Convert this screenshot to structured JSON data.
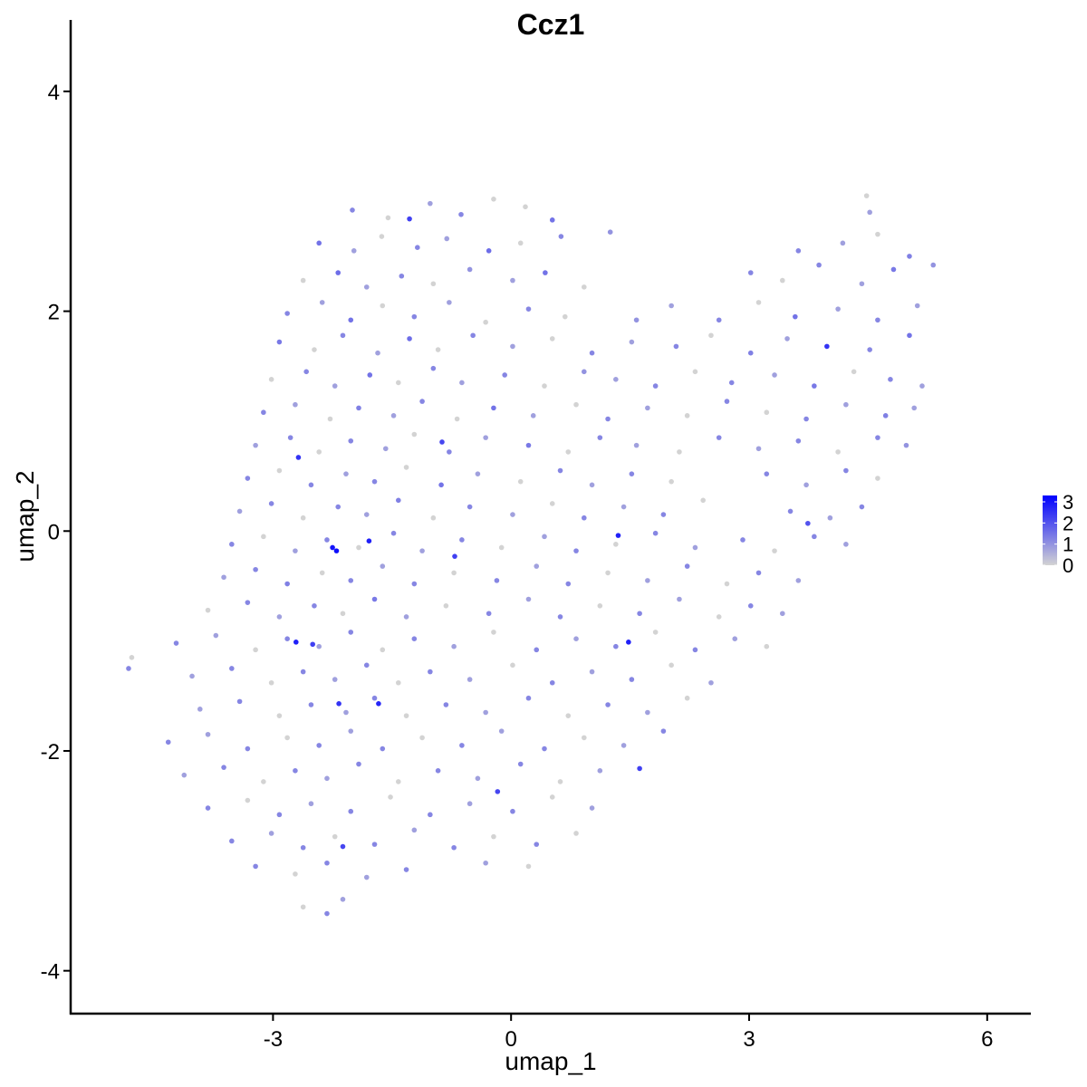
{
  "chart_data": {
    "type": "scatter",
    "title": "Ccz1",
    "xlabel": "umap_1",
    "ylabel": "umap_2",
    "xlim": [
      -5.55,
      6.55
    ],
    "ylim": [
      -4.39,
      4.65
    ],
    "xticks": [
      -3,
      0,
      3,
      6
    ],
    "yticks": [
      -4,
      -2,
      0,
      2,
      4
    ],
    "grid": false,
    "legend": {
      "position": "right",
      "ticks": [
        0,
        1,
        2,
        3
      ],
      "min": 0,
      "max": 3.3
    },
    "colors": {
      "low": "#D3D3D3",
      "high": "#0000FF"
    },
    "points": [
      [
        -2.68,
        0.67,
        2.5
      ],
      [
        -2.25,
        -0.15,
        3.0
      ],
      [
        -2.2,
        -0.18,
        3.1
      ],
      [
        -1.79,
        -0.09,
        2.8
      ],
      [
        -2.71,
        -1.01,
        2.8
      ],
      [
        -2.5,
        -1.03,
        2.3
      ],
      [
        -2.17,
        -1.57,
        2.5
      ],
      [
        -1.67,
        -1.57,
        2.7
      ],
      [
        1.35,
        -0.04,
        2.8
      ],
      [
        1.48,
        -1.01,
        2.8
      ],
      [
        -0.71,
        -0.23,
        2.3
      ],
      [
        3.98,
        1.68,
        2.5
      ],
      [
        -1.28,
        2.84,
        2.3
      ],
      [
        3.74,
        0.07,
        2.0
      ],
      [
        1.62,
        -2.16,
        2.3
      ],
      [
        -0.17,
        -2.37,
        2.2
      ],
      [
        -2.12,
        -2.87,
        2.2
      ],
      [
        -0.87,
        0.81,
        2.2
      ],
      [
        -2.0,
        2.92,
        1.2
      ],
      [
        -1.55,
        2.85,
        0
      ],
      [
        -1.02,
        2.98,
        0.8
      ],
      [
        -0.63,
        2.88,
        1.2
      ],
      [
        -0.22,
        3.02,
        0
      ],
      [
        0.18,
        2.95,
        0
      ],
      [
        0.52,
        2.83,
        1.5
      ],
      [
        4.48,
        3.05,
        0
      ],
      [
        4.52,
        2.9,
        0.8
      ],
      [
        -2.42,
        2.62,
        1.5
      ],
      [
        -1.98,
        2.55,
        0.8
      ],
      [
        -1.63,
        2.68,
        0
      ],
      [
        -1.18,
        2.58,
        1.2
      ],
      [
        -0.81,
        2.66,
        0.8
      ],
      [
        -0.28,
        2.55,
        1.6
      ],
      [
        0.12,
        2.62,
        0
      ],
      [
        0.63,
        2.68,
        1.2
      ],
      [
        1.25,
        2.72,
        1.0
      ],
      [
        3.62,
        2.55,
        1.2
      ],
      [
        4.18,
        2.62,
        0.8
      ],
      [
        4.62,
        2.7,
        0
      ],
      [
        5.02,
        2.5,
        1.3
      ],
      [
        -2.62,
        2.28,
        0
      ],
      [
        -2.18,
        2.35,
        1.6
      ],
      [
        -1.82,
        2.22,
        0.8
      ],
      [
        -1.38,
        2.32,
        1.2
      ],
      [
        -0.98,
        2.25,
        0
      ],
      [
        -0.52,
        2.38,
        1.0
      ],
      [
        0.02,
        2.28,
        0.8
      ],
      [
        0.43,
        2.35,
        1.5
      ],
      [
        0.92,
        2.22,
        0
      ],
      [
        3.02,
        2.35,
        1.2
      ],
      [
        3.42,
        2.28,
        0
      ],
      [
        3.88,
        2.42,
        1.2
      ],
      [
        4.42,
        2.25,
        0.8
      ],
      [
        4.82,
        2.38,
        1.4
      ],
      [
        5.32,
        2.42,
        1.0
      ],
      [
        -2.82,
        1.98,
        1.2
      ],
      [
        -2.38,
        2.08,
        0.8
      ],
      [
        -2.02,
        1.92,
        1.5
      ],
      [
        -1.62,
        2.05,
        0
      ],
      [
        -1.22,
        1.95,
        1.2
      ],
      [
        -0.78,
        2.08,
        0.8
      ],
      [
        -0.32,
        1.9,
        0
      ],
      [
        0.22,
        2.02,
        1.2
      ],
      [
        0.68,
        1.95,
        0
      ],
      [
        1.58,
        1.92,
        1.0
      ],
      [
        2.02,
        2.05,
        0.8
      ],
      [
        2.62,
        1.92,
        1.2
      ],
      [
        3.12,
        2.08,
        0
      ],
      [
        3.58,
        1.95,
        1.5
      ],
      [
        4.12,
        2.02,
        0.8
      ],
      [
        4.62,
        1.92,
        1.2
      ],
      [
        5.12,
        2.05,
        0.8
      ],
      [
        -2.92,
        1.72,
        1.4
      ],
      [
        -2.48,
        1.65,
        0
      ],
      [
        -2.12,
        1.78,
        1.2
      ],
      [
        -1.68,
        1.62,
        0.8
      ],
      [
        -1.28,
        1.75,
        1.6
      ],
      [
        -0.92,
        1.65,
        0
      ],
      [
        -0.48,
        1.78,
        1.2
      ],
      [
        0.02,
        1.68,
        0.8
      ],
      [
        0.52,
        1.75,
        0
      ],
      [
        1.02,
        1.62,
        1.2
      ],
      [
        1.52,
        1.72,
        0.8
      ],
      [
        2.08,
        1.68,
        1.2
      ],
      [
        2.52,
        1.78,
        0
      ],
      [
        3.02,
        1.62,
        1.3
      ],
      [
        3.48,
        1.75,
        0.8
      ],
      [
        4.52,
        1.65,
        1.2
      ],
      [
        5.02,
        1.78,
        1.5
      ],
      [
        -3.02,
        1.38,
        0
      ],
      [
        -2.58,
        1.45,
        1.2
      ],
      [
        -2.22,
        1.32,
        0.8
      ],
      [
        -1.78,
        1.42,
        1.5
      ],
      [
        -1.42,
        1.35,
        0
      ],
      [
        -0.98,
        1.48,
        1.2
      ],
      [
        -0.62,
        1.35,
        0.8
      ],
      [
        -0.08,
        1.42,
        1.2
      ],
      [
        0.42,
        1.32,
        0
      ],
      [
        0.92,
        1.45,
        1.0
      ],
      [
        1.32,
        1.38,
        0.8
      ],
      [
        1.82,
        1.32,
        1.2
      ],
      [
        2.32,
        1.45,
        0
      ],
      [
        2.78,
        1.35,
        1.2
      ],
      [
        3.32,
        1.42,
        0.8
      ],
      [
        3.82,
        1.32,
        1.4
      ],
      [
        4.32,
        1.45,
        0
      ],
      [
        4.78,
        1.38,
        1.2
      ],
      [
        5.18,
        1.32,
        0.8
      ],
      [
        -3.12,
        1.08,
        1.2
      ],
      [
        -2.72,
        1.15,
        0.8
      ],
      [
        -2.28,
        1.02,
        0
      ],
      [
        -1.92,
        1.12,
        1.3
      ],
      [
        -1.48,
        1.05,
        0.8
      ],
      [
        -1.12,
        1.18,
        1.2
      ],
      [
        -0.68,
        1.02,
        0
      ],
      [
        -0.22,
        1.12,
        1.5
      ],
      [
        0.28,
        1.05,
        0.8
      ],
      [
        0.82,
        1.15,
        0
      ],
      [
        1.22,
        1.02,
        1.2
      ],
      [
        1.72,
        1.12,
        0.8
      ],
      [
        2.22,
        1.05,
        0
      ],
      [
        2.72,
        1.18,
        1.2
      ],
      [
        3.22,
        1.08,
        0
      ],
      [
        3.72,
        1.02,
        1.2
      ],
      [
        4.22,
        1.15,
        0.8
      ],
      [
        4.72,
        1.05,
        1.3
      ],
      [
        5.08,
        1.12,
        0.8
      ],
      [
        -3.22,
        0.78,
        0.8
      ],
      [
        -2.78,
        0.85,
        1.2
      ],
      [
        -2.42,
        0.72,
        0
      ],
      [
        -2.02,
        0.82,
        1.2
      ],
      [
        -1.58,
        0.75,
        0.8
      ],
      [
        -1.22,
        0.88,
        0
      ],
      [
        -0.78,
        0.72,
        1.2
      ],
      [
        -0.32,
        0.85,
        0.8
      ],
      [
        0.22,
        0.78,
        1.4
      ],
      [
        0.72,
        0.72,
        0
      ],
      [
        1.12,
        0.85,
        1.2
      ],
      [
        1.58,
        0.78,
        0.8
      ],
      [
        2.12,
        0.72,
        0
      ],
      [
        2.62,
        0.85,
        1.2
      ],
      [
        3.12,
        0.75,
        0.8
      ],
      [
        3.62,
        0.82,
        1.2
      ],
      [
        4.12,
        0.72,
        0
      ],
      [
        4.62,
        0.85,
        1.2
      ],
      [
        4.98,
        0.78,
        1.0
      ],
      [
        -3.32,
        0.48,
        1.2
      ],
      [
        -2.92,
        0.55,
        0
      ],
      [
        -2.52,
        0.42,
        1.2
      ],
      [
        -2.08,
        0.52,
        0.8
      ],
      [
        -1.72,
        0.45,
        1.2
      ],
      [
        -1.32,
        0.58,
        0
      ],
      [
        -0.88,
        0.42,
        1.5
      ],
      [
        -0.42,
        0.52,
        0.8
      ],
      [
        0.12,
        0.45,
        0
      ],
      [
        0.62,
        0.55,
        1.2
      ],
      [
        1.02,
        0.42,
        0.8
      ],
      [
        1.52,
        0.52,
        1.2
      ],
      [
        2.02,
        0.45,
        0
      ],
      [
        3.22,
        0.52,
        1.2
      ],
      [
        3.72,
        0.42,
        0.8
      ],
      [
        4.22,
        0.55,
        1.2
      ],
      [
        4.62,
        0.48,
        0
      ],
      [
        -3.42,
        0.18,
        0.8
      ],
      [
        -3.02,
        0.25,
        1.2
      ],
      [
        -2.62,
        0.12,
        0
      ],
      [
        -2.18,
        0.22,
        1.2
      ],
      [
        -1.82,
        0.15,
        0.8
      ],
      [
        -1.42,
        0.28,
        1.3
      ],
      [
        -0.98,
        0.12,
        0
      ],
      [
        -0.52,
        0.22,
        1.2
      ],
      [
        0.02,
        0.15,
        0.8
      ],
      [
        0.52,
        0.25,
        0
      ],
      [
        0.92,
        0.12,
        1.2
      ],
      [
        1.42,
        0.22,
        0.8
      ],
      [
        1.92,
        0.15,
        1.2
      ],
      [
        2.42,
        0.28,
        0
      ],
      [
        3.52,
        0.18,
        1.2
      ],
      [
        4.02,
        0.12,
        0.8
      ],
      [
        4.42,
        0.22,
        1.2
      ],
      [
        -3.52,
        -0.12,
        1.2
      ],
      [
        -3.12,
        -0.05,
        0
      ],
      [
        -2.72,
        -0.18,
        0.8
      ],
      [
        -2.32,
        -0.08,
        1.2
      ],
      [
        -1.92,
        -0.15,
        0
      ],
      [
        -1.48,
        -0.02,
        1.2
      ],
      [
        -1.12,
        -0.18,
        0.8
      ],
      [
        -0.62,
        -0.08,
        1.2
      ],
      [
        -0.12,
        -0.15,
        0
      ],
      [
        0.42,
        -0.05,
        0.8
      ],
      [
        0.82,
        -0.18,
        1.2
      ],
      [
        1.32,
        -0.12,
        0
      ],
      [
        1.82,
        -0.02,
        1.2
      ],
      [
        2.32,
        -0.15,
        0.8
      ],
      [
        2.92,
        -0.08,
        1.2
      ],
      [
        3.32,
        -0.18,
        0
      ],
      [
        3.82,
        -0.05,
        1.2
      ],
      [
        4.22,
        -0.12,
        0.8
      ],
      [
        -3.62,
        -0.42,
        0.8
      ],
      [
        -3.22,
        -0.35,
        1.2
      ],
      [
        -2.82,
        -0.48,
        1.3
      ],
      [
        -2.38,
        -0.38,
        0
      ],
      [
        -2.02,
        -0.45,
        1.2
      ],
      [
        -1.62,
        -0.32,
        0.8
      ],
      [
        -1.22,
        -0.48,
        1.2
      ],
      [
        -0.72,
        -0.38,
        0
      ],
      [
        -0.18,
        -0.45,
        1.2
      ],
      [
        0.32,
        -0.32,
        0.8
      ],
      [
        0.72,
        -0.48,
        1.2
      ],
      [
        1.22,
        -0.38,
        0
      ],
      [
        1.72,
        -0.45,
        0.8
      ],
      [
        2.22,
        -0.32,
        1.2
      ],
      [
        2.72,
        -0.48,
        0
      ],
      [
        3.12,
        -0.38,
        1.2
      ],
      [
        3.62,
        -0.45,
        0.8
      ],
      [
        -3.82,
        -0.72,
        0
      ],
      [
        -3.32,
        -0.65,
        1.2
      ],
      [
        -2.92,
        -0.78,
        0.8
      ],
      [
        -2.48,
        -0.68,
        1.2
      ],
      [
        -2.12,
        -0.75,
        0
      ],
      [
        -1.72,
        -0.62,
        1.4
      ],
      [
        -1.32,
        -0.78,
        0.8
      ],
      [
        -0.82,
        -0.68,
        0
      ],
      [
        -0.28,
        -0.75,
        1.2
      ],
      [
        0.22,
        -0.62,
        0.8
      ],
      [
        0.62,
        -0.78,
        1.2
      ],
      [
        1.12,
        -0.68,
        0
      ],
      [
        1.62,
        -0.75,
        1.2
      ],
      [
        2.12,
        -0.62,
        0.8
      ],
      [
        2.62,
        -0.78,
        0
      ],
      [
        3.02,
        -0.68,
        1.2
      ],
      [
        3.42,
        -0.75,
        0.8
      ],
      [
        -4.22,
        -1.02,
        1.2
      ],
      [
        -3.72,
        -0.95,
        0.8
      ],
      [
        -3.22,
        -1.08,
        0
      ],
      [
        -2.82,
        -0.98,
        1.2
      ],
      [
        -2.42,
        -1.05,
        0.8
      ],
      [
        -2.02,
        -0.92,
        1.2
      ],
      [
        -1.62,
        -1.08,
        0
      ],
      [
        -1.22,
        -0.98,
        1.2
      ],
      [
        -0.72,
        -1.05,
        0.8
      ],
      [
        -0.22,
        -0.92,
        0
      ],
      [
        0.32,
        -1.08,
        1.2
      ],
      [
        0.82,
        -0.98,
        0.8
      ],
      [
        1.32,
        -1.05,
        1.2
      ],
      [
        1.82,
        -0.92,
        0
      ],
      [
        2.32,
        -1.08,
        1.2
      ],
      [
        2.82,
        -0.98,
        0.8
      ],
      [
        3.22,
        -1.05,
        0
      ],
      [
        -4.82,
        -1.25,
        1.2
      ],
      [
        -4.78,
        -1.15,
        0
      ],
      [
        -4.02,
        -1.32,
        0.8
      ],
      [
        -3.52,
        -1.25,
        1.2
      ],
      [
        -3.02,
        -1.38,
        0
      ],
      [
        -2.62,
        -1.28,
        1.2
      ],
      [
        -2.22,
        -1.35,
        0.8
      ],
      [
        -1.82,
        -1.22,
        1.2
      ],
      [
        -1.42,
        -1.38,
        0
      ],
      [
        -1.02,
        -1.28,
        1.2
      ],
      [
        -0.52,
        -1.35,
        0.8
      ],
      [
        0.02,
        -1.22,
        0
      ],
      [
        0.52,
        -1.38,
        1.2
      ],
      [
        1.02,
        -1.28,
        0.8
      ],
      [
        1.52,
        -1.35,
        1.2
      ],
      [
        2.02,
        -1.22,
        0
      ],
      [
        2.52,
        -1.38,
        0.8
      ],
      [
        -3.92,
        -1.62,
        0.8
      ],
      [
        -3.42,
        -1.55,
        1.2
      ],
      [
        -2.92,
        -1.68,
        0
      ],
      [
        -2.52,
        -1.58,
        1.2
      ],
      [
        -2.08,
        -1.65,
        0.8
      ],
      [
        -1.72,
        -1.52,
        1.2
      ],
      [
        -1.32,
        -1.68,
        0
      ],
      [
        -0.82,
        -1.58,
        1.2
      ],
      [
        -0.32,
        -1.65,
        0.8
      ],
      [
        0.22,
        -1.52,
        1.2
      ],
      [
        0.72,
        -1.68,
        0
      ],
      [
        1.22,
        -1.58,
        1.2
      ],
      [
        1.72,
        -1.65,
        0.8
      ],
      [
        2.22,
        -1.52,
        0
      ],
      [
        -4.32,
        -1.92,
        1.2
      ],
      [
        -3.82,
        -1.85,
        0.8
      ],
      [
        -3.32,
        -1.98,
        1.2
      ],
      [
        -2.82,
        -1.88,
        0
      ],
      [
        -2.42,
        -1.95,
        1.2
      ],
      [
        -2.02,
        -1.82,
        0.8
      ],
      [
        -1.62,
        -1.98,
        1.2
      ],
      [
        -1.12,
        -1.88,
        0
      ],
      [
        -0.62,
        -1.95,
        1.2
      ],
      [
        -0.12,
        -1.82,
        0.8
      ],
      [
        0.42,
        -1.98,
        1.2
      ],
      [
        0.92,
        -1.88,
        0
      ],
      [
        1.42,
        -1.95,
        0.8
      ],
      [
        1.92,
        -1.82,
        1.2
      ],
      [
        -4.12,
        -2.22,
        0.8
      ],
      [
        -3.62,
        -2.15,
        1.2
      ],
      [
        -3.12,
        -2.28,
        0
      ],
      [
        -2.72,
        -2.18,
        1.2
      ],
      [
        -2.32,
        -2.25,
        0.8
      ],
      [
        -1.92,
        -2.12,
        1.2
      ],
      [
        -1.42,
        -2.28,
        0
      ],
      [
        -0.92,
        -2.18,
        1.2
      ],
      [
        -0.42,
        -2.25,
        0.8
      ],
      [
        0.12,
        -2.12,
        1.2
      ],
      [
        0.62,
        -2.28,
        0
      ],
      [
        1.12,
        -2.18,
        0.8
      ],
      [
        -3.82,
        -2.52,
        1.2
      ],
      [
        -3.32,
        -2.45,
        0
      ],
      [
        -2.92,
        -2.58,
        1.2
      ],
      [
        -2.52,
        -2.48,
        0.8
      ],
      [
        -2.02,
        -2.55,
        1.2
      ],
      [
        -1.52,
        -2.42,
        0
      ],
      [
        -1.02,
        -2.58,
        1.2
      ],
      [
        -0.52,
        -2.48,
        0.8
      ],
      [
        0.02,
        -2.55,
        1.2
      ],
      [
        0.52,
        -2.42,
        0
      ],
      [
        1.02,
        -2.52,
        0.8
      ],
      [
        -3.52,
        -2.82,
        1.2
      ],
      [
        -3.02,
        -2.75,
        0.8
      ],
      [
        -2.62,
        -2.88,
        1.2
      ],
      [
        -2.22,
        -2.78,
        0
      ],
      [
        -1.72,
        -2.85,
        1.2
      ],
      [
        -1.22,
        -2.72,
        0.8
      ],
      [
        -0.72,
        -2.88,
        1.2
      ],
      [
        -0.22,
        -2.78,
        0
      ],
      [
        0.32,
        -2.85,
        1.2
      ],
      [
        0.82,
        -2.75,
        0
      ],
      [
        -3.22,
        -3.05,
        1.2
      ],
      [
        -2.72,
        -3.12,
        0
      ],
      [
        -2.32,
        -3.02,
        1.2
      ],
      [
        -1.82,
        -3.15,
        0.8
      ],
      [
        -1.32,
        -3.08,
        1.2
      ],
      [
        -0.32,
        -3.02,
        0.8
      ],
      [
        0.22,
        -3.05,
        0
      ],
      [
        -2.62,
        -3.42,
        0
      ],
      [
        -2.32,
        -3.48,
        1.2
      ],
      [
        -2.12,
        -3.35,
        0.8
      ]
    ]
  }
}
